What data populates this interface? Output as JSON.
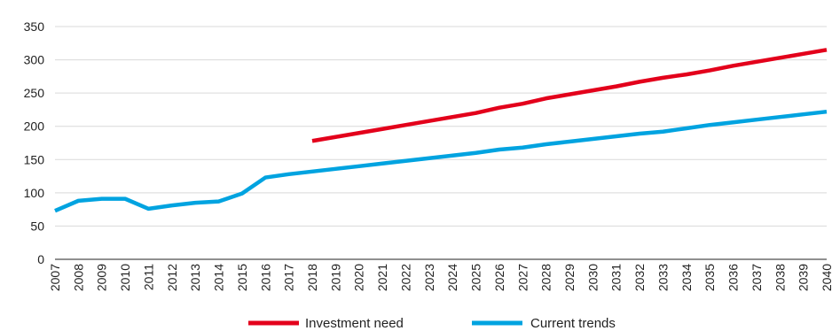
{
  "chart_data": {
    "type": "line",
    "title": "",
    "xlabel": "",
    "ylabel": "",
    "ylim": [
      0,
      350
    ],
    "yticks": [
      0,
      50,
      100,
      150,
      200,
      250,
      300,
      350
    ],
    "grid": true,
    "legend_position": "bottom-center",
    "x": [
      "2007",
      "2008",
      "2009",
      "2010",
      "2011",
      "2012",
      "2013",
      "2014",
      "2015",
      "2016",
      "2017",
      "2018",
      "2019",
      "2020",
      "2021",
      "2022",
      "2023",
      "2024",
      "2025",
      "2026",
      "2027",
      "2028",
      "2029",
      "2030",
      "2031",
      "2032",
      "2033",
      "2034",
      "2035",
      "2036",
      "2037",
      "2038",
      "2039",
      "2040"
    ],
    "series": [
      {
        "name": "Investment need",
        "color": "#e3001b",
        "values": [
          null,
          null,
          null,
          null,
          null,
          null,
          null,
          null,
          null,
          null,
          null,
          178,
          184,
          190,
          196,
          202,
          208,
          214,
          220,
          228,
          234,
          242,
          248,
          254,
          260,
          267,
          273,
          278,
          284,
          291,
          297,
          303,
          309,
          315
        ]
      },
      {
        "name": "Current trends",
        "color": "#00a3e0",
        "values": [
          73,
          88,
          91,
          91,
          76,
          81,
          85,
          87,
          99,
          123,
          128,
          132,
          136,
          140,
          144,
          148,
          152,
          156,
          160,
          165,
          168,
          173,
          177,
          181,
          185,
          189,
          192,
          197,
          202,
          206,
          210,
          214,
          218,
          222
        ]
      }
    ]
  }
}
